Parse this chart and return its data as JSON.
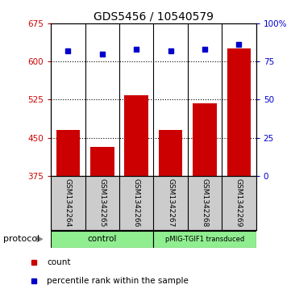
{
  "title": "GDS5456 / 10540579",
  "samples": [
    "GSM1342264",
    "GSM1342265",
    "GSM1342266",
    "GSM1342267",
    "GSM1342268",
    "GSM1342269"
  ],
  "counts": [
    465,
    432,
    533,
    466,
    517,
    625
  ],
  "percentile_ranks": [
    82,
    80,
    83,
    82,
    83,
    86
  ],
  "ylim_left": [
    375,
    675
  ],
  "yticks_left": [
    375,
    450,
    525,
    600,
    675
  ],
  "ylim_right": [
    0,
    100
  ],
  "yticks_right": [
    0,
    25,
    50,
    75,
    100
  ],
  "bar_color": "#cc0000",
  "dot_color": "#0000cc",
  "control_label": "control",
  "pmig_label": "pMIG-TGIF1 transduced",
  "protocol_label": "protocol",
  "legend_count_label": "count",
  "legend_percentile_label": "percentile rank within the sample",
  "tick_color_left": "#cc0000",
  "tick_color_right": "#0000cc",
  "background_label": "#cccccc",
  "protocol_green": "#90ee90"
}
